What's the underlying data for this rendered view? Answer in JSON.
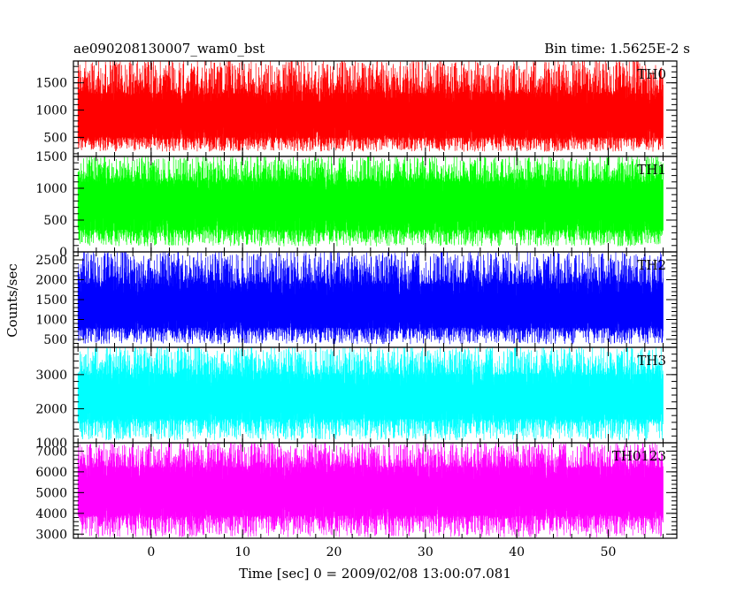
{
  "header": {
    "title": "ae090208130007_wam0_bst",
    "bin_time": "Bin time: 1.5625E-2 s"
  },
  "chart_data": {
    "type": "line",
    "xlabel": "Time [sec] 0 = 2009/02/08 13:00:07.081",
    "ylabel": "Counts/sec",
    "xlim": [
      -8.5,
      57.5
    ],
    "data_xrange": [
      -8,
      56
    ],
    "xticks": [
      0,
      10,
      20,
      30,
      40,
      50
    ],
    "xtick_labels": [
      "0",
      "10",
      "20",
      "30",
      "40",
      "50"
    ],
    "panels": [
      {
        "name": "TH0",
        "color": "#ff0000",
        "ylim": [
          150,
          1900
        ],
        "yticks": [
          500,
          1000,
          1500
        ],
        "ytick_labels": [
          "500",
          "1000",
          "1500"
        ],
        "mean": 900,
        "typical_low": 500,
        "typical_high": 1300,
        "min": 250,
        "max": 1900
      },
      {
        "name": "TH1",
        "color": "#00ff00",
        "ylim": [
          0,
          1500
        ],
        "yticks": [
          0,
          500,
          1000,
          1500
        ],
        "ytick_labels": [
          "0",
          "500",
          "1000",
          "1500"
        ],
        "mean": 750,
        "typical_low": 350,
        "typical_high": 1100,
        "min": 100,
        "max": 1500
      },
      {
        "name": "TH2",
        "color": "#0000ff",
        "ylim": [
          300,
          2700
        ],
        "yticks": [
          500,
          1000,
          1500,
          2000,
          2500
        ],
        "ytick_labels": [
          "500",
          "1000",
          "1500",
          "2000",
          "2500"
        ],
        "mean": 1300,
        "typical_low": 800,
        "typical_high": 1900,
        "min": 400,
        "max": 2700
      },
      {
        "name": "TH3",
        "color": "#00ffff",
        "ylim": [
          1000,
          3800
        ],
        "yticks": [
          1000,
          2000,
          3000
        ],
        "ytick_labels": [
          "1000",
          "2000",
          "3000"
        ],
        "mean": 2300,
        "typical_low": 1700,
        "typical_high": 3000,
        "min": 1100,
        "max": 3800
      },
      {
        "name": "TH0123",
        "color": "#ff00ff",
        "ylim": [
          2800,
          7400
        ],
        "yticks": [
          3000,
          4000,
          5000,
          6000,
          7000
        ],
        "ytick_labels": [
          "3000",
          "4000",
          "5000",
          "6000",
          "7000"
        ],
        "mean": 5000,
        "typical_low": 3900,
        "typical_high": 6200,
        "min": 2900,
        "max": 7400
      }
    ]
  }
}
